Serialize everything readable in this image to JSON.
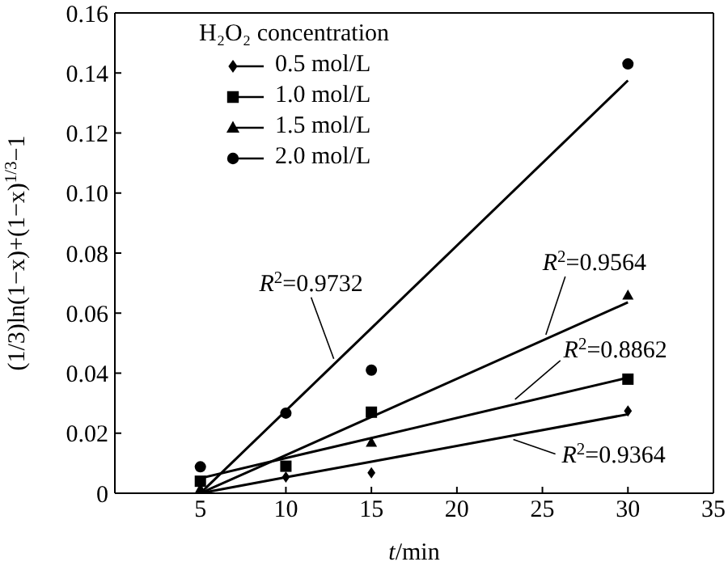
{
  "chart_data": {
    "type": "scatter",
    "xlabel": "t/min",
    "ylabel": "(1/3)ln(1−x)+(1−x)$^{1/3}$−1",
    "legend_title": "H₂O₂ concentration",
    "x": [
      5,
      10,
      15,
      30
    ],
    "series": [
      {
        "name": "0.5 mol/L",
        "color": "#000000",
        "marker": "diamond",
        "values": [
          null,
          0.0054,
          0.0068,
          0.0274
        ]
      },
      {
        "name": "1.0 mol/L",
        "color": "#000000",
        "marker": "square",
        "values": [
          0.004,
          0.009,
          0.027,
          0.038
        ]
      },
      {
        "name": "1.5 mol/L",
        "color": "#000000",
        "marker": "triangle",
        "values": [
          0.0015,
          null,
          0.017,
          0.066
        ]
      },
      {
        "name": "2.0 mol/L",
        "color": "#000000",
        "marker": "circle",
        "values": [
          0.0088,
          0.0267,
          0.041,
          0.143
        ]
      },
      {
        "type": "line",
        "color": "#000000",
        "values": [
          0,
          0.0053,
          0.0105,
          0.0263
        ]
      },
      {
        "type": "line",
        "color": "#000000",
        "values": [
          0.005,
          0.0117,
          0.0184,
          0.0385
        ]
      },
      {
        "type": "line",
        "color": "#000000",
        "values": [
          0,
          0.0127,
          0.0254,
          0.0636
        ]
      },
      {
        "type": "line",
        "color": "#000000",
        "values": [
          0,
          0.0275,
          0.055,
          0.1375
        ]
      }
    ],
    "annotations": [
      {
        "text": "R$^{2}$=0.9732",
        "x": 12.8,
        "y": 0.0448
      },
      {
        "text": "R$^{2}$=0.9564",
        "x": 25.2,
        "y": 0.0528
      },
      {
        "text": "R$^{2}$=0.8862",
        "x": 23.4,
        "y": 0.0313
      },
      {
        "text": "R$^{2}$=0.9364",
        "x": 23.3,
        "y": 0.0179
      }
    ],
    "xlim": [
      0,
      35
    ],
    "xticks": [
      5,
      10,
      15,
      20,
      25,
      30,
      35
    ],
    "ylim": [
      0,
      0.16
    ],
    "yticks": [
      0,
      0.02,
      0.04,
      0.06,
      0.08,
      {
        "value": 0.1,
        "label": "0.10"
      },
      0.12,
      0.14,
      0.16
    ],
    "legend": "top left",
    "grid": false
  }
}
